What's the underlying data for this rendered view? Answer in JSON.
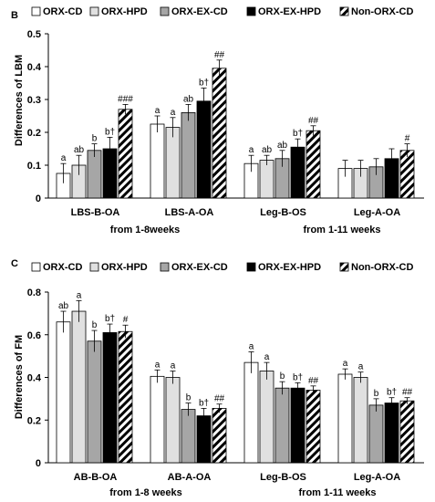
{
  "colors": {
    "ORX-CD": "#ffffff",
    "ORX-HPD": "#e0e0e0",
    "ORX-EX-CD": "#a6a6a6",
    "ORX-EX-HPD": "#000000",
    "Non-ORX-CD": "hatch"
  },
  "chart_data": [
    {
      "type": "bar",
      "panel_label": "B",
      "ylabel": "Differences of LBM",
      "ylim": [
        0,
        0.5
      ],
      "yticks": [
        "0",
        "0.1",
        "0.2",
        "0.3",
        "0.4",
        "0.5"
      ],
      "ytick_values": [
        0,
        0.1,
        0.2,
        0.3,
        0.4,
        0.5
      ],
      "legend": [
        "ORX-CD",
        "ORX-HPD",
        "ORX-EX-CD",
        "ORX-EX-HPD",
        "Non-ORX-CD"
      ],
      "categories": [
        "LBS-B-OA",
        "LBS-A-OA",
        "Leg-B-OS",
        "Leg-A-OA"
      ],
      "group_labels": [
        "from 1-8weeks",
        "from 1-11 weeks"
      ],
      "series": [
        {
          "name": "ORX-CD",
          "values": [
            0.075,
            0.225,
            0.105,
            0.09
          ],
          "errors": [
            0.03,
            0.025,
            0.025,
            0.025
          ]
        },
        {
          "name": "ORX-HPD",
          "values": [
            0.1,
            0.215,
            0.115,
            0.09
          ],
          "errors": [
            0.03,
            0.03,
            0.015,
            0.025
          ]
        },
        {
          "name": "ORX-EX-CD",
          "values": [
            0.145,
            0.26,
            0.12,
            0.095
          ],
          "errors": [
            0.02,
            0.025,
            0.025,
            0.025
          ]
        },
        {
          "name": "ORX-EX-HPD",
          "values": [
            0.15,
            0.295,
            0.155,
            0.12
          ],
          "errors": [
            0.035,
            0.04,
            0.025,
            0.03
          ]
        },
        {
          "name": "Non-ORX-CD",
          "values": [
            0.27,
            0.395,
            0.205,
            0.145
          ],
          "errors": [
            0.015,
            0.025,
            0.015,
            0.02
          ]
        }
      ],
      "annotations": [
        [
          "a",
          "ab",
          "b",
          "b†",
          "###"
        ],
        [
          "a",
          "a",
          "ab",
          "b†",
          "##"
        ],
        [
          "a",
          "ab",
          "ab",
          "b†",
          "##"
        ],
        [
          "",
          "",
          "",
          "",
          "#"
        ]
      ]
    },
    {
      "type": "bar",
      "panel_label": "C",
      "ylabel": "Differences of FM",
      "ylim": [
        0,
        0.8
      ],
      "yticks": [
        "0",
        "0.2",
        "0.4",
        "0.6",
        "0.8"
      ],
      "ytick_values": [
        0,
        0.2,
        0.4,
        0.6,
        0.8
      ],
      "legend": [
        "ORX-CD",
        "ORX-HPD",
        "ORX-EX-CD",
        "ORX-EX-HPD",
        "Non-ORX-CD"
      ],
      "categories": [
        "AB-B-OA",
        "AB-A-OA",
        "Leg-B-OS",
        "Leg-A-OA"
      ],
      "group_labels": [
        "from 1-8 weeks",
        "from 1-11 weeks"
      ],
      "series": [
        {
          "name": "ORX-CD",
          "values": [
            0.66,
            0.405,
            0.47,
            0.415
          ],
          "errors": [
            0.05,
            0.03,
            0.05,
            0.025
          ]
        },
        {
          "name": "ORX-HPD",
          "values": [
            0.71,
            0.4,
            0.43,
            0.4
          ],
          "errors": [
            0.05,
            0.03,
            0.04,
            0.025
          ]
        },
        {
          "name": "ORX-EX-CD",
          "values": [
            0.57,
            0.25,
            0.35,
            0.27
          ],
          "errors": [
            0.05,
            0.03,
            0.03,
            0.03
          ]
        },
        {
          "name": "ORX-EX-HPD",
          "values": [
            0.61,
            0.22,
            0.35,
            0.28
          ],
          "errors": [
            0.04,
            0.035,
            0.025,
            0.025
          ]
        },
        {
          "name": "Non-ORX-CD",
          "values": [
            0.615,
            0.255,
            0.34,
            0.29
          ],
          "errors": [
            0.03,
            0.02,
            0.02,
            0.015
          ]
        }
      ],
      "annotations": [
        [
          "ab",
          "a",
          "b",
          "b†",
          "#"
        ],
        [
          "a",
          "a",
          "b",
          "b†",
          "##"
        ],
        [
          "a",
          "a",
          "b",
          "b†",
          "##"
        ],
        [
          "a",
          "a",
          "b",
          "b†",
          "##"
        ]
      ]
    }
  ]
}
